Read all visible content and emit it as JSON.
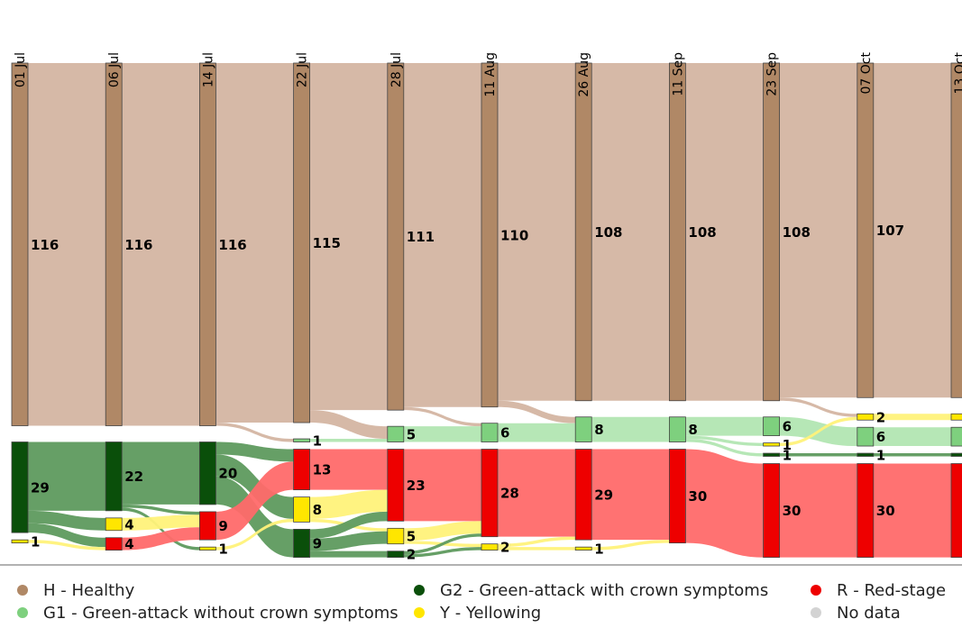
{
  "chart_data": {
    "type": "sankey",
    "columns": [
      "01 Jul",
      "06 Jul",
      "14 Jul",
      "22 Jul",
      "28 Jul",
      "11 Aug",
      "26 Aug",
      "11 Sep",
      "23 Sep",
      "07 Oct",
      "13 Oct"
    ],
    "series": [
      {
        "name": "H - Healthy",
        "color": "#b08866",
        "link_color": "#d4b5a2",
        "values": [
          116,
          116,
          116,
          115,
          111,
          110,
          108,
          108,
          108,
          107,
          107
        ]
      },
      {
        "name": "G1 - Green-attack without crown symptoms",
        "color": "#7ed07e",
        "link_color": "#b2e6b2",
        "values": [
          null,
          null,
          null,
          1,
          5,
          6,
          8,
          8,
          6,
          6,
          6
        ]
      },
      {
        "name": "G2 - Green-attack with crown symptoms",
        "color": "#0a4f0a",
        "link_color": "#5e9a5e",
        "values": [
          29,
          22,
          20,
          9,
          2,
          null,
          null,
          null,
          1,
          1,
          1
        ]
      },
      {
        "name": "Y - Yellowing",
        "color": "#ffe600",
        "link_color": "#fff27a",
        "values": [
          1,
          4,
          1,
          8,
          5,
          2,
          1,
          null,
          1,
          2,
          2
        ]
      },
      {
        "name": "R - Red-stage",
        "color": "#ee0000",
        "link_color": "#ff6a6a",
        "values": [
          null,
          4,
          9,
          13,
          23,
          28,
          29,
          30,
          30,
          30,
          30
        ]
      },
      {
        "name": "No data",
        "color": "#d3d3d3",
        "link_color": "#e6e6e6",
        "values": [
          null,
          null,
          null,
          null,
          null,
          null,
          null,
          null,
          null,
          null,
          null
        ]
      }
    ],
    "flows": [
      [
        [
          0,
          0,
          116
        ],
        [
          2,
          2,
          22
        ],
        [
          2,
          3,
          4
        ],
        [
          2,
          4,
          3
        ],
        [
          3,
          4,
          1
        ]
      ],
      [
        [
          0,
          0,
          116
        ],
        [
          2,
          2,
          20
        ],
        [
          2,
          4,
          1
        ],
        [
          2,
          3,
          1
        ],
        [
          3,
          4,
          4
        ],
        [
          4,
          4,
          4
        ]
      ],
      [
        [
          0,
          0,
          115
        ],
        [
          0,
          1,
          1
        ],
        [
          2,
          2,
          9
        ],
        [
          2,
          3,
          7
        ],
        [
          2,
          4,
          4
        ],
        [
          4,
          4,
          9
        ],
        [
          3,
          3,
          1
        ]
      ],
      [
        [
          0,
          0,
          111
        ],
        [
          0,
          1,
          4
        ],
        [
          1,
          1,
          1
        ],
        [
          4,
          4,
          13
        ],
        [
          3,
          4,
          7
        ],
        [
          3,
          3,
          1
        ],
        [
          2,
          2,
          2
        ],
        [
          2,
          3,
          4
        ],
        [
          2,
          4,
          3
        ]
      ],
      [
        [
          0,
          0,
          110
        ],
        [
          0,
          1,
          1
        ],
        [
          1,
          1,
          5
        ],
        [
          4,
          4,
          23
        ],
        [
          3,
          4,
          4
        ],
        [
          3,
          3,
          1
        ],
        [
          2,
          4,
          1
        ],
        [
          2,
          3,
          1
        ]
      ],
      [
        [
          0,
          0,
          108
        ],
        [
          0,
          1,
          2
        ],
        [
          1,
          1,
          6
        ],
        [
          4,
          4,
          28
        ],
        [
          3,
          4,
          1
        ],
        [
          3,
          3,
          1
        ]
      ],
      [
        [
          0,
          0,
          108
        ],
        [
          1,
          1,
          8
        ],
        [
          4,
          4,
          29
        ],
        [
          3,
          4,
          1
        ]
      ],
      [
        [
          0,
          0,
          108
        ],
        [
          1,
          1,
          6
        ],
        [
          1,
          3,
          1
        ],
        [
          1,
          2,
          1
        ],
        [
          4,
          4,
          30
        ]
      ],
      [
        [
          0,
          0,
          107
        ],
        [
          0,
          3,
          1
        ],
        [
          1,
          1,
          6
        ],
        [
          3,
          3,
          1
        ],
        [
          2,
          2,
          1
        ],
        [
          4,
          4,
          30
        ]
      ],
      [
        [
          0,
          0,
          107
        ],
        [
          3,
          3,
          2
        ],
        [
          1,
          1,
          6
        ],
        [
          2,
          2,
          1
        ],
        [
          4,
          4,
          30
        ]
      ]
    ]
  }
}
